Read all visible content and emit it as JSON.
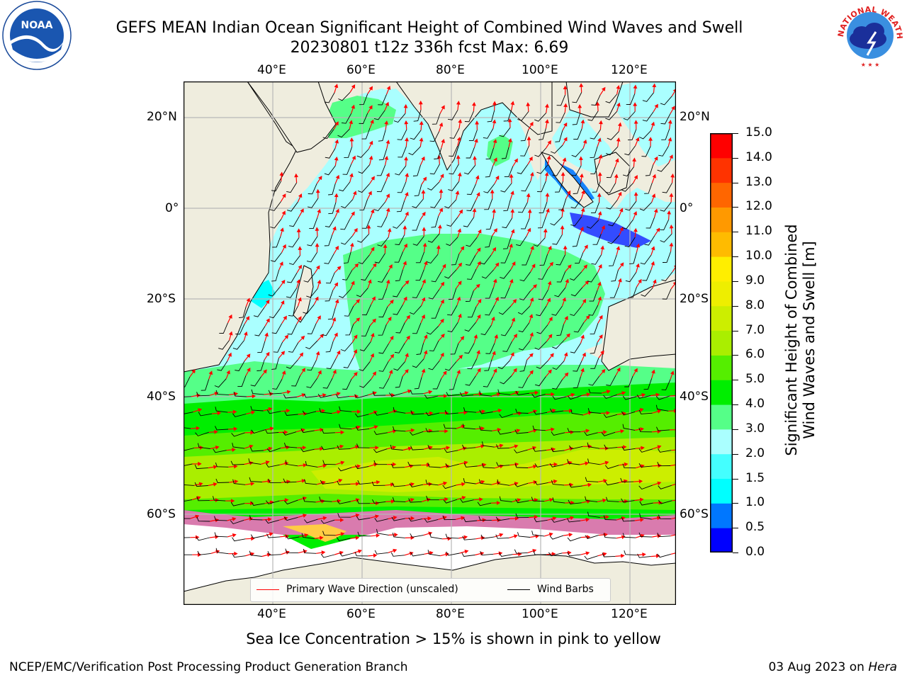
{
  "header": {
    "title_line1": "GEFS MEAN Indian Ocean Significant Height of Combined Wind Waves and Swell",
    "title_line2": "20230801 t12z 336h fcst   Max: 6.69"
  },
  "logos": {
    "left": {
      "icon": "noaa-logo-icon",
      "text": "NOAA"
    },
    "right": {
      "icon": "nws-logo-icon",
      "text": "NATIONAL WEATHER SERVICE"
    }
  },
  "map": {
    "lon_labels": [
      "40°E",
      "60°E",
      "80°E",
      "100°E",
      "120°E"
    ],
    "lat_labels": [
      "20°N",
      "0°",
      "20°S",
      "40°S",
      "60°S"
    ],
    "extent": {
      "lon": [
        20,
        130
      ],
      "lat": [
        -70,
        27
      ]
    },
    "colors": {
      "land": "#efedde",
      "ice": "#ffffff",
      "grid": "#b8b8b8",
      "arrow": "#ff0000",
      "barb": "#000000"
    }
  },
  "legend": {
    "wave_label": "Primary Wave Direction (unscaled)",
    "barb_label": "Wind Barbs"
  },
  "colorbar": {
    "title_line1": "Significant Height of Combined",
    "title_line2": "Wind Waves and Swell [m]",
    "ticks": [
      "0.0",
      "0.5",
      "1.0",
      "1.5",
      "2.0",
      "3.0",
      "4.0",
      "5.0",
      "6.0",
      "7.0",
      "8.0",
      "9.0",
      "10.0",
      "11.0",
      "12.0",
      "13.0",
      "14.0",
      "15.0"
    ],
    "colors": [
      "#0000ff",
      "#0077ff",
      "#00ffff",
      "#44ffff",
      "#aaffff",
      "#55ff88",
      "#00ee00",
      "#55ee00",
      "#aaee00",
      "#ccee00",
      "#eeee00",
      "#ffee00",
      "#ffbb00",
      "#ff9900",
      "#ff6600",
      "#ff3300",
      "#ff0000"
    ]
  },
  "caption": "Sea Ice Concentration > 15% is shown in pink to yellow",
  "footer": {
    "left": "NCEP/EMC/Verification Post Processing Product Generation Branch",
    "right_prefix": "03 Aug 2023 on ",
    "right_host": "Hera"
  }
}
